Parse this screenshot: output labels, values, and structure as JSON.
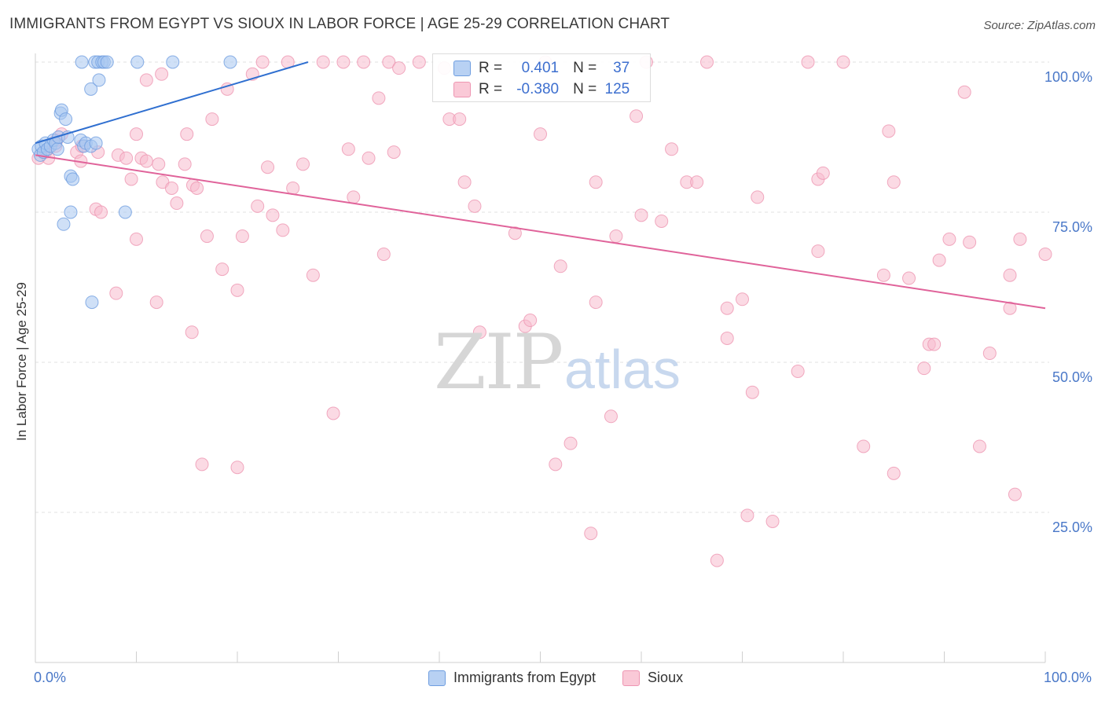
{
  "title": "IMMIGRANTS FROM EGYPT VS SIOUX IN LABOR FORCE | AGE 25-29 CORRELATION CHART",
  "source": "Source: ZipAtlas.com",
  "watermark": {
    "zip": "ZIP",
    "atlas": "atlas"
  },
  "legend": {
    "egypt": {
      "r_label": "R =",
      "r_value": "0.401",
      "n_label": "N =",
      "n_value": "37"
    },
    "sioux": {
      "r_label": "R =",
      "r_value": "-0.380",
      "n_label": "N =",
      "n_value": "125"
    }
  },
  "bottom_legend": {
    "egypt": "Immigrants from Egypt",
    "sioux": "Sioux"
  },
  "colors": {
    "egypt_fill": "#a8c6f0",
    "egypt_stroke": "#6f9ee0",
    "egypt_line": "#2f6fd0",
    "sioux_fill": "#f7bccd",
    "sioux_stroke": "#ee96b2",
    "sioux_line": "#e0639a"
  },
  "chart_data": {
    "type": "scatter",
    "title": "IMMIGRANTS FROM EGYPT VS SIOUX IN LABOR FORCE | AGE 25-29 CORRELATION CHART",
    "xlabel": "",
    "ylabel": "In Labor Force | Age 25-29",
    "xlim": [
      0,
      100
    ],
    "ylim": [
      0,
      100
    ],
    "x_tick_labels": [
      "0.0%",
      "100.0%"
    ],
    "y_ticks": [
      25,
      50,
      75,
      100
    ],
    "y_tick_labels": [
      "25.0%",
      "50.0%",
      "75.0%",
      "100.0%"
    ],
    "series": [
      {
        "name": "Immigrants from Egypt",
        "points": [
          [
            0.3,
            85.5
          ],
          [
            0.5,
            84.5
          ],
          [
            0.6,
            86
          ],
          [
            0.8,
            85
          ],
          [
            1.0,
            86.5
          ],
          [
            1.2,
            85.5
          ],
          [
            1.5,
            86
          ],
          [
            1.8,
            87
          ],
          [
            2.0,
            86.5
          ],
          [
            2.2,
            85.5
          ],
          [
            2.3,
            87.5
          ],
          [
            2.5,
            91.5
          ],
          [
            2.6,
            92
          ],
          [
            3.0,
            90.5
          ],
          [
            3.2,
            87.5
          ],
          [
            3.5,
            81
          ],
          [
            3.7,
            80.5
          ],
          [
            3.5,
            75
          ],
          [
            2.8,
            73
          ],
          [
            4.5,
            87
          ],
          [
            4.8,
            86
          ],
          [
            5.0,
            86.5
          ],
          [
            5.5,
            86
          ],
          [
            6.0,
            86.5
          ],
          [
            5.5,
            95.5
          ],
          [
            6.3,
            97
          ],
          [
            4.6,
            100
          ],
          [
            5.9,
            100
          ],
          [
            6.2,
            100
          ],
          [
            6.6,
            100
          ],
          [
            6.8,
            100
          ],
          [
            7.1,
            100
          ],
          [
            10.1,
            100
          ],
          [
            13.6,
            100
          ],
          [
            19.3,
            100
          ],
          [
            8.9,
            75
          ],
          [
            5.6,
            60
          ]
        ]
      },
      {
        "name": "Sioux",
        "points": [
          [
            0.3,
            84
          ],
          [
            1.0,
            85
          ],
          [
            1.3,
            84
          ],
          [
            2.1,
            87
          ],
          [
            2.6,
            88
          ],
          [
            4.1,
            85
          ],
          [
            4.6,
            86
          ],
          [
            6.2,
            85
          ],
          [
            8.2,
            84.5
          ],
          [
            9.0,
            84
          ],
          [
            10.0,
            88
          ],
          [
            10.5,
            84
          ],
          [
            11.0,
            83.5
          ],
          [
            12.2,
            83
          ],
          [
            12.6,
            80
          ],
          [
            13.5,
            79
          ],
          [
            11.0,
            97
          ],
          [
            12.5,
            98
          ],
          [
            14.0,
            76.5
          ],
          [
            14.8,
            83
          ],
          [
            15.6,
            79.5
          ],
          [
            15.0,
            88
          ],
          [
            16.0,
            79
          ],
          [
            17.0,
            71
          ],
          [
            18.5,
            65.5
          ],
          [
            19.0,
            95.5
          ],
          [
            17.5,
            90.5
          ],
          [
            20.5,
            71
          ],
          [
            20.0,
            62
          ],
          [
            21.5,
            98
          ],
          [
            22.5,
            100
          ],
          [
            23.0,
            82.5
          ],
          [
            23.5,
            74.5
          ],
          [
            24.5,
            72
          ],
          [
            25.0,
            100
          ],
          [
            25.5,
            79
          ],
          [
            26.5,
            83
          ],
          [
            22.0,
            76
          ],
          [
            27.5,
            64.5
          ],
          [
            28.5,
            100
          ],
          [
            29.5,
            41.5
          ],
          [
            30.5,
            100
          ],
          [
            31.0,
            85.5
          ],
          [
            31.5,
            77.5
          ],
          [
            32.5,
            100
          ],
          [
            33.0,
            84
          ],
          [
            34.5,
            68
          ],
          [
            35.0,
            100
          ],
          [
            34.0,
            94
          ],
          [
            35.5,
            85
          ],
          [
            36.0,
            99
          ],
          [
            38.0,
            100
          ],
          [
            40.5,
            99
          ],
          [
            41.0,
            90.5
          ],
          [
            42.0,
            90.5
          ],
          [
            42.5,
            80
          ],
          [
            43.5,
            76
          ],
          [
            47.5,
            71.5
          ],
          [
            48.5,
            56
          ],
          [
            49.0,
            57
          ],
          [
            50.0,
            88
          ],
          [
            50.5,
            100
          ],
          [
            51.5,
            33
          ],
          [
            52.0,
            66
          ],
          [
            53.0,
            36.5
          ],
          [
            55.0,
            21.5
          ],
          [
            55.5,
            80
          ],
          [
            55.5,
            60
          ],
          [
            57.0,
            41
          ],
          [
            57.5,
            71
          ],
          [
            59.5,
            91
          ],
          [
            60.0,
            74.5
          ],
          [
            60.5,
            100
          ],
          [
            62.0,
            73.5
          ],
          [
            63.0,
            85.5
          ],
          [
            64.5,
            80
          ],
          [
            65.5,
            80
          ],
          [
            66.5,
            100
          ],
          [
            67.5,
            17
          ],
          [
            68.5,
            54
          ],
          [
            68.5,
            59
          ],
          [
            70.0,
            60.5
          ],
          [
            70.5,
            24.5
          ],
          [
            71.0,
            45
          ],
          [
            71.5,
            77.5
          ],
          [
            73.0,
            23.5
          ],
          [
            75.5,
            48.5
          ],
          [
            76.5,
            100
          ],
          [
            77.5,
            80.5
          ],
          [
            77.5,
            68.5
          ],
          [
            78.0,
            81.5
          ],
          [
            80.0,
            100
          ],
          [
            82.0,
            36
          ],
          [
            84.0,
            64.5
          ],
          [
            84.5,
            88.5
          ],
          [
            85.0,
            80
          ],
          [
            85.0,
            31.5
          ],
          [
            86.5,
            64
          ],
          [
            88.0,
            49
          ],
          [
            88.5,
            53
          ],
          [
            89.0,
            53
          ],
          [
            89.5,
            67
          ],
          [
            90.5,
            70.5
          ],
          [
            92.5,
            70
          ],
          [
            92.0,
            95
          ],
          [
            93.5,
            36
          ],
          [
            94.5,
            51.5
          ],
          [
            96.5,
            64.5
          ],
          [
            96.5,
            59
          ],
          [
            97.0,
            28
          ],
          [
            97.5,
            70.5
          ],
          [
            100,
            68
          ],
          [
            8.0,
            61.5
          ],
          [
            4.5,
            83.5
          ],
          [
            6.0,
            75.5
          ],
          [
            6.5,
            75
          ],
          [
            2.0,
            86
          ],
          [
            9.5,
            80.5
          ],
          [
            10.0,
            70.5
          ],
          [
            12.0,
            60
          ],
          [
            15.5,
            55
          ],
          [
            16.5,
            33
          ],
          [
            20.0,
            32.5
          ],
          [
            44.0,
            55
          ]
        ]
      }
    ],
    "trend_lines": [
      {
        "name": "Immigrants from Egypt",
        "x": [
          0,
          27
        ],
        "y": [
          86.5,
          100
        ]
      },
      {
        "name": "Sioux",
        "x": [
          0,
          100
        ],
        "y": [
          84.5,
          59
        ]
      }
    ],
    "stats": [
      {
        "name": "Immigrants from Egypt",
        "R": 0.401,
        "N": 37
      },
      {
        "name": "Sioux",
        "R": -0.38,
        "N": 125
      }
    ]
  }
}
